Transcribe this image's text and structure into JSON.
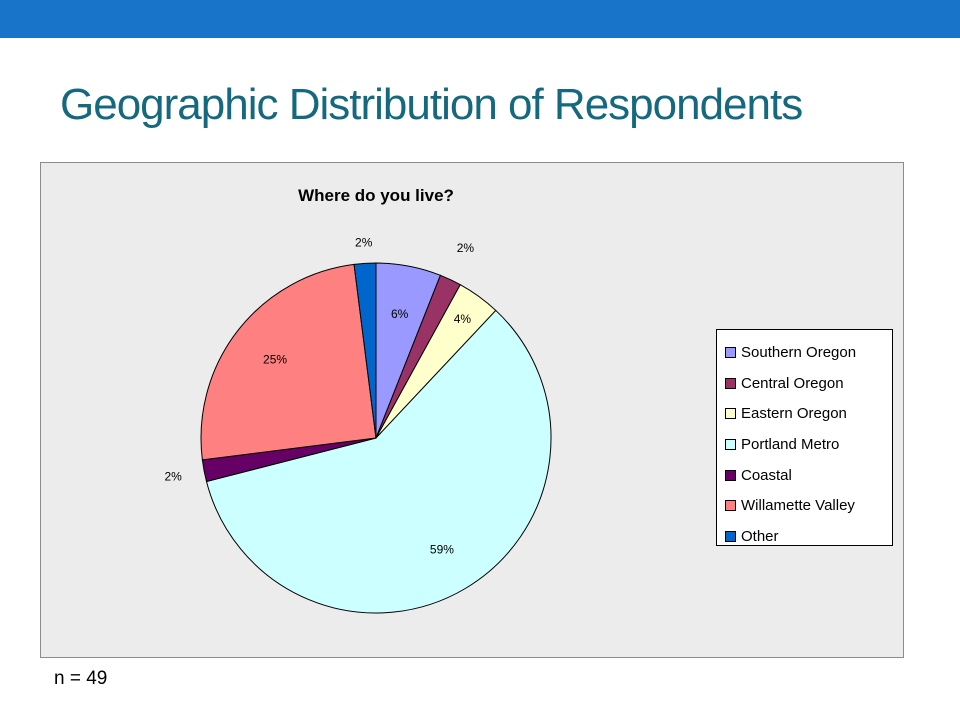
{
  "slide": {
    "title": "Geographic Distribution of Respondents",
    "footnote": "n = 49",
    "accent_color": "#1874c8",
    "title_color": "#14697f"
  },
  "chart_data": {
    "type": "pie",
    "title": "Where do you live?",
    "legend_position": "right",
    "slices": [
      {
        "name": "Southern Oregon",
        "value": 6,
        "label": "6%",
        "color": "#9999ff"
      },
      {
        "name": "Central Oregon",
        "value": 2,
        "label": "2%",
        "color": "#993366"
      },
      {
        "name": "Eastern Oregon",
        "value": 4,
        "label": "4%",
        "color": "#ffffcc"
      },
      {
        "name": "Portland Metro",
        "value": 59,
        "label": "59%",
        "color": "#ccffff"
      },
      {
        "name": "Coastal",
        "value": 2,
        "label": "2%",
        "color": "#660066"
      },
      {
        "name": "Willamette Valley",
        "value": 25,
        "label": "25%",
        "color": "#ff8080"
      },
      {
        "name": "Other",
        "value": 2,
        "label": "2%",
        "color": "#0066cc"
      }
    ]
  }
}
